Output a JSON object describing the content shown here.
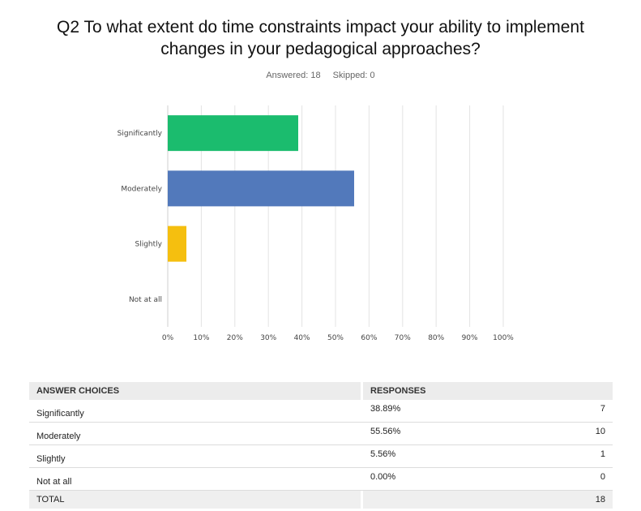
{
  "question": {
    "title_line1": "Q2 To what extent do time constraints impact your ability to implement",
    "title_line2": "changes in your pedagogical approaches?",
    "answered": "Answered: 18",
    "skipped": "Skipped: 0"
  },
  "chart_data": {
    "type": "bar",
    "orientation": "horizontal",
    "categories": [
      "Significantly",
      "Moderately",
      "Slightly",
      "Not at all"
    ],
    "values": [
      38.89,
      55.56,
      5.56,
      0.0
    ],
    "colors": [
      "#1bbc6e",
      "#5279bb",
      "#f5bf0f",
      "#b9369a"
    ],
    "xlim": [
      0,
      100
    ],
    "xticks": [
      "0%",
      "10%",
      "20%",
      "30%",
      "40%",
      "50%",
      "60%",
      "70%",
      "80%",
      "90%",
      "100%"
    ],
    "grid": true
  },
  "table": {
    "header": {
      "choices": "ANSWER CHOICES",
      "responses": "RESPONSES"
    },
    "rows": [
      {
        "choice": "Significantly",
        "percent": "38.89%",
        "count": "7"
      },
      {
        "choice": "Moderately",
        "percent": "55.56%",
        "count": "10"
      },
      {
        "choice": "Slightly",
        "percent": "5.56%",
        "count": "1"
      },
      {
        "choice": "Not at all",
        "percent": "0.00%",
        "count": "0"
      }
    ],
    "total": {
      "label": "TOTAL",
      "count": "18"
    }
  }
}
